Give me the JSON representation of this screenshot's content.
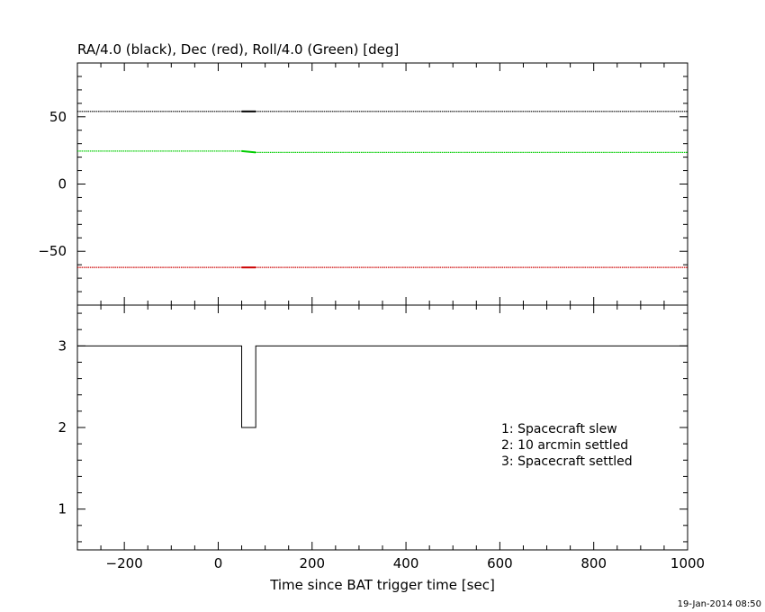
{
  "chart_data": [
    {
      "type": "line",
      "title": "RA/4.0 (black), Dec (red), Roll/4.0 (Green) [deg]",
      "xlim": [
        -300,
        1000
      ],
      "ylim": [
        -90,
        90
      ],
      "y_ticks": [
        50,
        0,
        -50
      ],
      "x_ticks": [
        -200,
        0,
        200,
        400,
        600,
        800,
        1000
      ],
      "grid": false,
      "series": [
        {
          "name": "RA/4.0 (black)",
          "color": "#000000",
          "x": [
            -300,
            50,
            80,
            1000
          ],
          "y": [
            54,
            54,
            54,
            54
          ]
        },
        {
          "name": "Dec (red)",
          "color": "#cc0000",
          "x": [
            -300,
            50,
            80,
            1000
          ],
          "y": [
            -62,
            -62,
            -62,
            -62
          ]
        },
        {
          "name": "Roll/4.0 (Green)",
          "color": "#00cc00",
          "x": [
            -300,
            50,
            80,
            1000
          ],
          "y": [
            24.5,
            24.5,
            23.5,
            23.5
          ]
        }
      ]
    },
    {
      "type": "line",
      "xlabel": "Time since BAT trigger time [sec]",
      "xlim": [
        -300,
        1000
      ],
      "ylim": [
        0.5,
        3.5
      ],
      "y_ticks": [
        3,
        2,
        1
      ],
      "x_ticks": [
        -200,
        0,
        200,
        400,
        600,
        800,
        1000
      ],
      "grid": false,
      "series": [
        {
          "color": "#000000",
          "x": [
            -300,
            50,
            50,
            80,
            80,
            1000
          ],
          "y": [
            3,
            3,
            2,
            2,
            3,
            3
          ]
        }
      ],
      "annotations": [
        "1: Spacecraft slew",
        "2: 10 arcmin settled",
        "3: Spacecraft settled"
      ]
    }
  ],
  "footer": {
    "timestamp": "19-Jan-2014 08:50"
  }
}
